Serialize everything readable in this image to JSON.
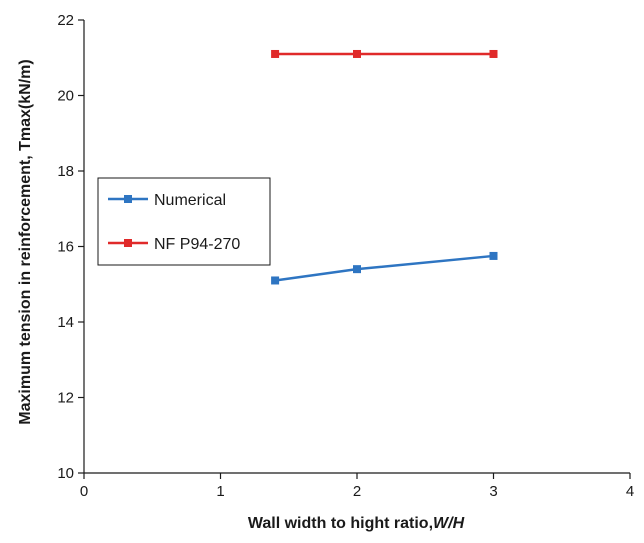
{
  "chart_data": {
    "type": "line",
    "title": "",
    "xlabel": "Wall width to hight ratio,",
    "xlabel_var": "W/H",
    "ylabel": "Maximum tension in reinforcement, Tmax(kN/m)",
    "xlim": [
      0,
      4
    ],
    "ylim": [
      10,
      22
    ],
    "x_ticks": [
      0,
      1,
      2,
      3,
      4
    ],
    "y_ticks": [
      10,
      12,
      14,
      16,
      18,
      20,
      22
    ],
    "grid": false,
    "legend_position": "left",
    "series": [
      {
        "name": "Numerical",
        "color": "#2e75c2",
        "marker": "square",
        "x": [
          1.4,
          2,
          3
        ],
        "y": [
          15.1,
          15.4,
          15.75
        ]
      },
      {
        "name": "NF P94-270",
        "color": "#e02a2a",
        "marker": "square",
        "x": [
          1.4,
          2,
          3
        ],
        "y": [
          21.1,
          21.1,
          21.1
        ]
      }
    ]
  }
}
